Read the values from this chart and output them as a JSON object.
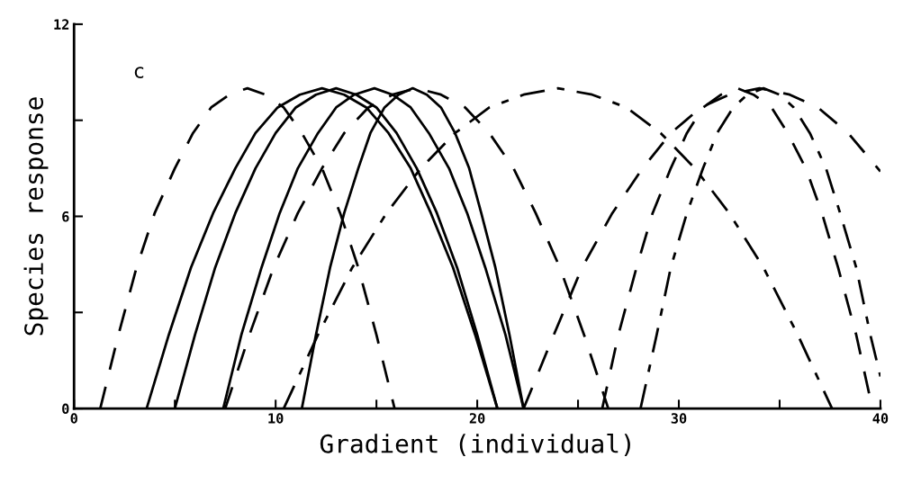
{
  "chart_data": {
    "type": "line",
    "xlabel": "Gradient (individual)",
    "ylabel": "Species response",
    "annotations": [
      "c"
    ],
    "xlim": [
      0,
      40
    ],
    "ylim": [
      0,
      12
    ],
    "xticks": [
      0,
      {
        "value": 5,
        "label": null
      },
      10,
      {
        "value": 15,
        "label": null
      },
      20,
      {
        "value": 25,
        "label": null
      },
      30,
      {
        "value": 35,
        "label": null
      },
      40
    ],
    "yticks": [
      0,
      {
        "value": 3,
        "label": null
      },
      6,
      {
        "value": 9,
        "label": null
      },
      12
    ],
    "grid": false,
    "legend": false,
    "marker": "none",
    "series": [
      {
        "color": "#000000",
        "line_style": "solid",
        "x": [
          3.6,
          4.7,
          5.8,
          6.9,
          8.0,
          9.0,
          10.1,
          11.2,
          12.3,
          13.4,
          14.5,
          15.6,
          16.7,
          17.7,
          18.8,
          19.9,
          21.0
        ],
        "values": [
          0,
          2.3,
          4.4,
          6.1,
          7.5,
          8.6,
          9.4,
          9.8,
          10,
          9.8,
          9.4,
          8.6,
          7.5,
          6.1,
          4.4,
          2.3,
          0
        ]
      },
      {
        "color": "#000000",
        "line_style": "solid",
        "x": [
          5,
          6,
          7,
          8,
          9,
          10,
          11,
          12,
          13,
          14,
          15,
          16,
          17,
          18,
          19,
          20,
          21
        ],
        "values": [
          0,
          2.3,
          4.4,
          6.1,
          7.5,
          8.6,
          9.4,
          9.8,
          10,
          9.8,
          9.4,
          8.6,
          7.5,
          6.1,
          4.4,
          2.3,
          0
        ]
      },
      {
        "color": "#000000",
        "line_style": "solid",
        "x": [
          7.4,
          8.3,
          9.3,
          10.2,
          11.1,
          12.1,
          13.0,
          13.9,
          14.9,
          15.8,
          16.7,
          17.6,
          18.6,
          19.5,
          20.4,
          21.4,
          22.3
        ],
        "values": [
          0,
          2.3,
          4.4,
          6.1,
          7.5,
          8.6,
          9.4,
          9.8,
          10,
          9.8,
          9.4,
          8.6,
          7.5,
          6.1,
          4.4,
          2.3,
          0
        ]
      },
      {
        "color": "#000000",
        "line_style": "solid",
        "x": [
          11.3,
          12.0,
          12.7,
          13.4,
          14.1,
          14.7,
          15.4,
          16.1,
          16.8,
          17.5,
          18.2,
          18.9,
          19.6,
          20.2,
          20.9,
          21.6,
          22.3
        ],
        "values": [
          0,
          2.3,
          4.4,
          6.1,
          7.5,
          8.6,
          9.4,
          9.8,
          10,
          9.8,
          9.4,
          8.6,
          7.5,
          6.1,
          4.4,
          2.3,
          0
        ]
      },
      {
        "color": "#000000",
        "line_style": "dashed",
        "x": [
          1.3,
          2.2,
          3.1,
          4.0,
          5.0,
          5.9,
          6.8,
          7.7,
          8.6,
          9.5,
          10.4,
          11.3,
          12.3,
          13.2,
          14.1,
          15.0,
          15.9
        ],
        "values": [
          0,
          2.3,
          4.4,
          6.1,
          7.5,
          8.6,
          9.4,
          9.8,
          10,
          9.8,
          9.4,
          8.6,
          7.5,
          6.1,
          4.4,
          2.3,
          0
        ]
      },
      {
        "color": "#000000",
        "line_style": "dashed",
        "x": [
          7.5,
          8.7,
          9.9,
          11.1,
          12.3,
          13.4,
          14.6,
          15.8,
          17.0,
          18.2,
          19.4,
          20.6,
          21.8,
          22.9,
          24.1,
          25.3,
          26.5
        ],
        "values": [
          0,
          2.3,
          4.4,
          6.1,
          7.5,
          8.6,
          9.4,
          9.8,
          10,
          9.8,
          9.4,
          8.6,
          7.5,
          6.1,
          4.4,
          2.3,
          0
        ]
      },
      {
        "color": "#000000",
        "line_style": "dashed",
        "x": [
          22.3,
          23.8,
          25.2,
          26.7,
          28.2,
          29.6,
          31.1,
          32.5,
          34.0,
          35.5,
          36.9,
          38.4,
          40
        ],
        "values": [
          0,
          2.3,
          4.4,
          6.1,
          7.5,
          8.6,
          9.4,
          9.8,
          10,
          9.8,
          9.4,
          8.6,
          7.4
        ]
      },
      {
        "color": "#000000",
        "line_style": "dashed",
        "x": [
          26.2,
          27.0,
          27.9,
          28.7,
          29.6,
          30.4,
          31.2,
          32.1,
          32.9,
          33.7,
          34.6,
          35.4,
          36.3,
          37.1,
          37.9,
          38.8,
          39.6
        ],
        "values": [
          0,
          2.3,
          4.4,
          6.1,
          7.5,
          8.6,
          9.4,
          9.8,
          10,
          9.8,
          9.4,
          8.6,
          7.5,
          6.1,
          4.4,
          2.3,
          0
        ]
      },
      {
        "color": "#000000",
        "line_style": "dashdot",
        "x": [
          28.1,
          28.9,
          29.6,
          30.4,
          31.2,
          31.9,
          32.7,
          33.4,
          34.2,
          35.0,
          35.7,
          36.5,
          37.3,
          38.0,
          38.8,
          39.5,
          40
        ],
        "values": [
          0,
          2.3,
          4.4,
          6.1,
          7.5,
          8.6,
          9.4,
          9.8,
          10,
          9.8,
          9.4,
          8.6,
          7.5,
          6.1,
          4.4,
          2.3,
          1.0
        ]
      },
      {
        "color": "#000000",
        "line_style": "dashdot",
        "x": [
          10.4,
          12.1,
          13.8,
          15.5,
          17.2,
          18.9,
          20.6,
          22.3,
          24.0,
          25.7,
          27.4,
          29.1,
          30.8,
          32.5,
          34.2,
          35.9,
          37.6
        ],
        "values": [
          0,
          2.3,
          4.4,
          6.1,
          7.5,
          8.6,
          9.4,
          9.8,
          10,
          9.8,
          9.4,
          8.6,
          7.5,
          6.1,
          4.4,
          2.3,
          0
        ]
      }
    ]
  }
}
